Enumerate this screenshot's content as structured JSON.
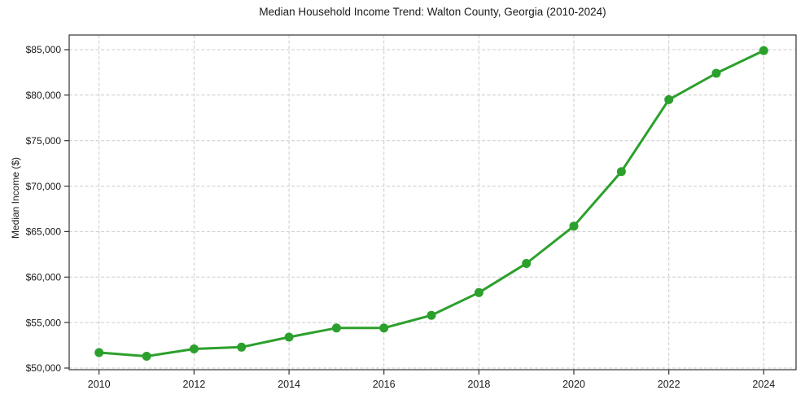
{
  "chart_data": {
    "type": "line",
    "title": "Median Household Income Trend: Walton County, Georgia (2010-2024)",
    "xlabel": "",
    "ylabel": "Median Income ($)",
    "x": [
      2010,
      2011,
      2012,
      2013,
      2014,
      2015,
      2016,
      2017,
      2018,
      2019,
      2020,
      2021,
      2022,
      2023,
      2024
    ],
    "values": [
      51700,
      51300,
      52100,
      52300,
      53400,
      54400,
      54400,
      55800,
      58300,
      61500,
      65600,
      71600,
      79500,
      82400,
      84900
    ],
    "x_ticks": [
      {
        "value": 2010,
        "label": "2010"
      },
      {
        "value": 2012,
        "label": "2012"
      },
      {
        "value": 2014,
        "label": "2014"
      },
      {
        "value": 2016,
        "label": "2016"
      },
      {
        "value": 2018,
        "label": "2018"
      },
      {
        "value": 2020,
        "label": "2020"
      },
      {
        "value": 2022,
        "label": "2022"
      },
      {
        "value": 2024,
        "label": "2024"
      }
    ],
    "y_ticks": [
      {
        "value": 50000,
        "label": "$50,000"
      },
      {
        "value": 55000,
        "label": "$55,000"
      },
      {
        "value": 60000,
        "label": "$60,000"
      },
      {
        "value": 65000,
        "label": "$65,000"
      },
      {
        "value": 70000,
        "label": "$70,000"
      },
      {
        "value": 75000,
        "label": "$75,000"
      },
      {
        "value": 80000,
        "label": "$80,000"
      },
      {
        "value": 85000,
        "label": "$85,000"
      }
    ],
    "xlim": [
      2009.37,
      2024.68
    ],
    "ylim": [
      49820,
      86610
    ],
    "grid": true,
    "grid_style": "dashed",
    "legend": "none",
    "marker": "circle",
    "colors": {
      "line": "#2ca02c",
      "marker": "#2ca02c",
      "grid": "#cccccc",
      "spine": "#333333",
      "text": "#1a1a1a",
      "background": "#ffffff"
    }
  }
}
